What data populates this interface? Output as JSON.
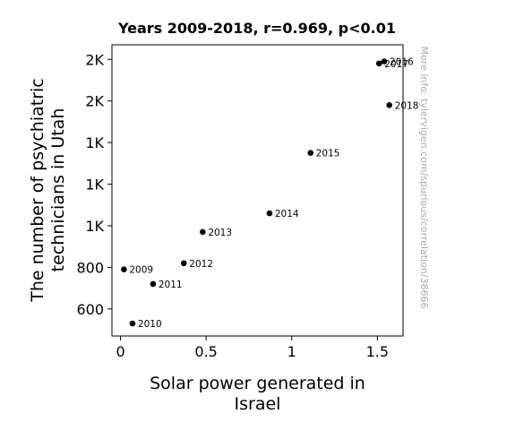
{
  "chart_data": {
    "type": "scatter",
    "title": "Years 2009-2018, r=0.969, p<0.01",
    "xlabel_lines": [
      "Solar power generated in",
      "Israel"
    ],
    "ylabel_lines": [
      "The number of psychiatric",
      "technicians in Utah"
    ],
    "xlim": [
      -0.05,
      1.65
    ],
    "ylim": [
      470,
      1870
    ],
    "xticks": [
      {
        "value": 0,
        "label": "0"
      },
      {
        "value": 0.5,
        "label": "0.5"
      },
      {
        "value": 1,
        "label": "1"
      },
      {
        "value": 1.5,
        "label": "1.5"
      }
    ],
    "yticks": [
      {
        "value": 600,
        "label": "600"
      },
      {
        "value": 800,
        "label": "800"
      },
      {
        "value": 1000,
        "label": "1K"
      },
      {
        "value": 1200,
        "label": "1K"
      },
      {
        "value": 1400,
        "label": "1K"
      },
      {
        "value": 1600,
        "label": "2K"
      },
      {
        "value": 1800,
        "label": "2K"
      }
    ],
    "points": [
      {
        "label": "2009",
        "x": 0.02,
        "y": 790
      },
      {
        "label": "2010",
        "x": 0.07,
        "y": 530
      },
      {
        "label": "2011",
        "x": 0.19,
        "y": 720
      },
      {
        "label": "2012",
        "x": 0.37,
        "y": 820
      },
      {
        "label": "2013",
        "x": 0.48,
        "y": 970
      },
      {
        "label": "2014",
        "x": 0.87,
        "y": 1060
      },
      {
        "label": "2015",
        "x": 1.11,
        "y": 1350
      },
      {
        "label": "2016",
        "x": 1.54,
        "y": 1790
      },
      {
        "label": "2017",
        "x": 1.51,
        "y": 1780
      },
      {
        "label": "2018",
        "x": 1.57,
        "y": 1580
      }
    ],
    "watermark": "More info: tylervigen.com/spurious/correlation/38666",
    "colors": {
      "point": "#000000",
      "watermark": "#aaaaaa"
    }
  }
}
